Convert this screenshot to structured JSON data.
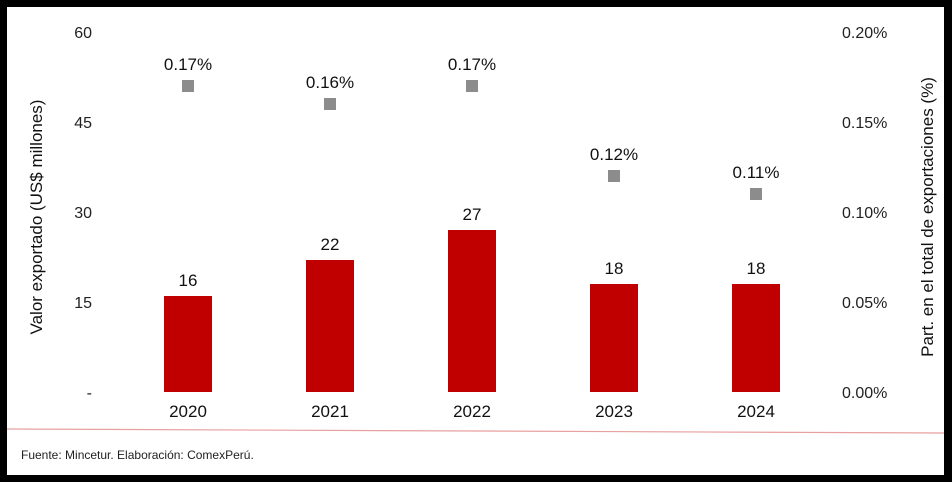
{
  "source": "Fuente: Mincetur. Elaboración: ComexPerú.",
  "colors": {
    "bar": "#c00000",
    "marker": "#8c8c8c",
    "divider": "#e8a0a0"
  },
  "chart_data": {
    "type": "bar",
    "categories": [
      "2020",
      "2021",
      "2022",
      "2023",
      "2024"
    ],
    "series": [
      {
        "values": [
          16,
          22,
          27,
          18,
          18
        ],
        "labels": [
          "16",
          "22",
          "27",
          "18",
          "18"
        ]
      },
      {
        "values": [
          0.17,
          0.16,
          0.17,
          0.12,
          0.11
        ],
        "labels": [
          "0.17%",
          "0.16%",
          "0.17%",
          "0.12%",
          "0.11%"
        ]
      }
    ],
    "ylabel": "Valor exportado (US$ millones)",
    "y2label": "Part. en el total de exportaciones (%)",
    "ylim": [
      0,
      60
    ],
    "yticks": [
      "-",
      "15",
      "30",
      "45",
      "60"
    ],
    "y2lim": [
      0,
      0.2
    ],
    "y2ticks": [
      "0.00%",
      "0.05%",
      "0.10%",
      "0.15%",
      "0.20%"
    ]
  }
}
